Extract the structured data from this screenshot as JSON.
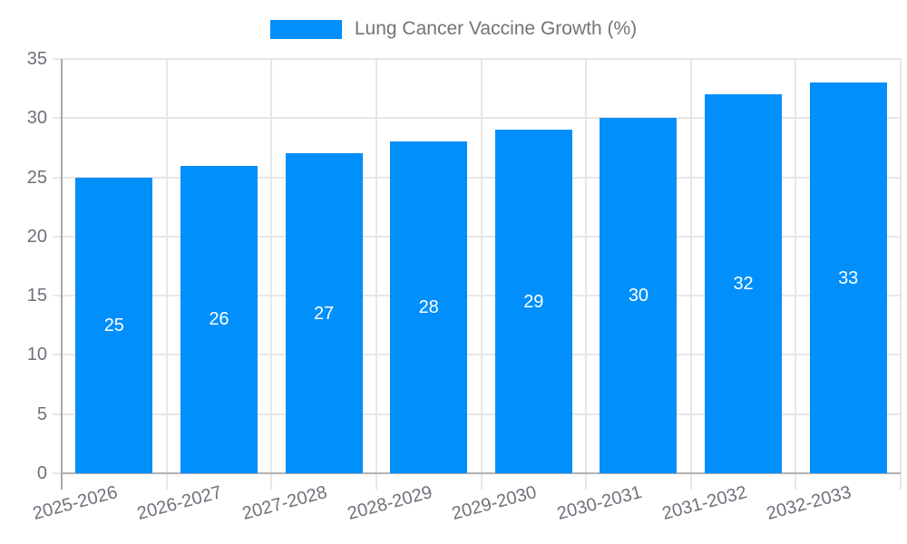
{
  "legend": {
    "label": "Lung Cancer Vaccine Growth (%)"
  },
  "colors": {
    "bar": "#008FFB",
    "grid": "#e7e7e7",
    "y_axis_line": "#a8a8a8",
    "x_axis_line": "#b2b2b2",
    "tick_label": "#70707a",
    "legend_text": "#747474",
    "bar_value_text": "#ffffff",
    "background": "#ffffff"
  },
  "chart_data": {
    "type": "bar",
    "title": "Lung Cancer Vaccine Growth (%)",
    "categories": [
      "2025-2026",
      "2026-2027",
      "2027-2028",
      "2028-2029",
      "2029-2030",
      "2030-2031",
      "2031-2032",
      "2032-2033"
    ],
    "values": [
      25,
      26,
      27,
      28,
      29,
      30,
      32,
      33
    ],
    "series": [
      {
        "name": "Lung Cancer Vaccine Growth (%)",
        "values": [
          25,
          26,
          27,
          28,
          29,
          30,
          32,
          33
        ]
      }
    ],
    "xlabel": "",
    "ylabel": "",
    "ylim": [
      0,
      35
    ],
    "yticks": [
      0,
      5,
      10,
      15,
      20,
      25,
      30,
      35
    ],
    "grid": true,
    "grid_vertical": true,
    "legend_position": "top-center",
    "bar_labels": true,
    "bar_label_position": "inside-middle",
    "x_label_rotation_deg": -15
  }
}
